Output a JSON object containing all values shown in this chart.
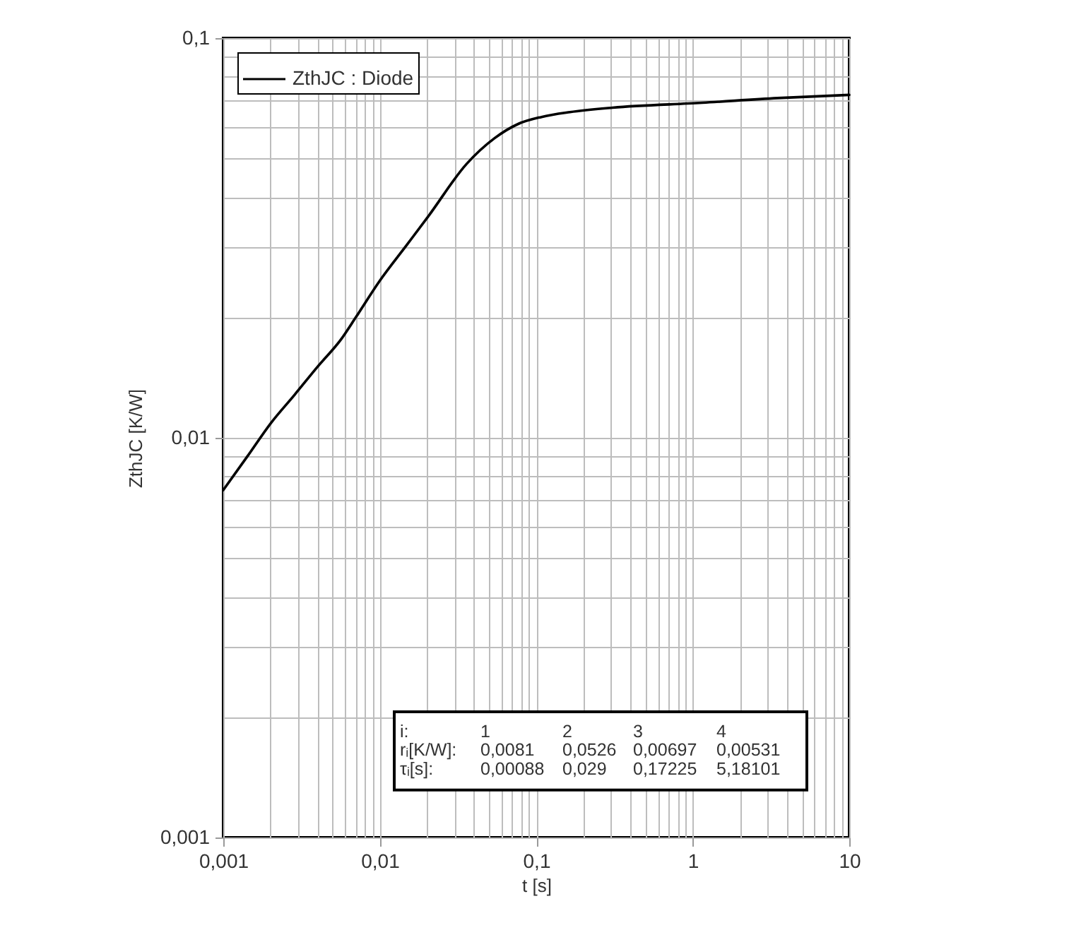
{
  "chart_data": {
    "type": "line",
    "xlabel": "t [s]",
    "ylabel": "ZthJC [K/W]",
    "log": "xy",
    "grid": true,
    "legend": "top left",
    "line_style": "solid",
    "xlim": [
      0.001,
      10
    ],
    "ylim": [
      0.001,
      0.1
    ],
    "xticks": [
      {
        "value": 0.001,
        "label": "0,001"
      },
      {
        "value": 0.002,
        "label": null
      },
      {
        "value": 0.003,
        "label": null
      },
      {
        "value": 0.004,
        "label": null
      },
      {
        "value": 0.005,
        "label": null
      },
      {
        "value": 0.006,
        "label": null
      },
      {
        "value": 0.007,
        "label": null
      },
      {
        "value": 0.008,
        "label": null
      },
      {
        "value": 0.009,
        "label": null
      },
      {
        "value": 0.01,
        "label": "0,01"
      },
      {
        "value": 0.02,
        "label": null
      },
      {
        "value": 0.03,
        "label": null
      },
      {
        "value": 0.04,
        "label": null
      },
      {
        "value": 0.05,
        "label": null
      },
      {
        "value": 0.06,
        "label": null
      },
      {
        "value": 0.07,
        "label": null
      },
      {
        "value": 0.08,
        "label": null
      },
      {
        "value": 0.09,
        "label": null
      },
      {
        "value": 0.1,
        "label": "0,1"
      },
      {
        "value": 0.2,
        "label": null
      },
      {
        "value": 0.3,
        "label": null
      },
      {
        "value": 0.4,
        "label": null
      },
      {
        "value": 0.5,
        "label": null
      },
      {
        "value": 0.6,
        "label": null
      },
      {
        "value": 0.7,
        "label": null
      },
      {
        "value": 0.8,
        "label": null
      },
      {
        "value": 0.9,
        "label": null
      },
      1,
      {
        "value": 2,
        "label": null
      },
      {
        "value": 3,
        "label": null
      },
      {
        "value": 4,
        "label": null
      },
      {
        "value": 5,
        "label": null
      },
      {
        "value": 6,
        "label": null
      },
      {
        "value": 7,
        "label": null
      },
      {
        "value": 8,
        "label": null
      },
      {
        "value": 9,
        "label": null
      },
      10
    ],
    "yticks": [
      {
        "value": 0.001,
        "label": "0,001"
      },
      {
        "value": 0.002,
        "label": null
      },
      {
        "value": 0.003,
        "label": null
      },
      {
        "value": 0.004,
        "label": null
      },
      {
        "value": 0.005,
        "label": null
      },
      {
        "value": 0.006,
        "label": null
      },
      {
        "value": 0.007,
        "label": null
      },
      {
        "value": 0.008,
        "label": null
      },
      {
        "value": 0.009,
        "label": null
      },
      {
        "value": 0.01,
        "label": "0,01"
      },
      {
        "value": 0.02,
        "label": null
      },
      {
        "value": 0.03,
        "label": null
      },
      {
        "value": 0.04,
        "label": null
      },
      {
        "value": 0.05,
        "label": null
      },
      {
        "value": 0.06,
        "label": null
      },
      {
        "value": 0.07,
        "label": null
      },
      {
        "value": 0.08,
        "label": null
      },
      {
        "value": 0.09,
        "label": null
      },
      {
        "value": 0.1,
        "label": "0,1"
      }
    ],
    "x": [
      0.001,
      0.00143,
      0.00202,
      0.00285,
      0.00403,
      0.0057,
      0.00702,
      0.00992,
      0.015,
      0.0205,
      0.0358,
      0.0542,
      0.0767,
      0.108,
      0.164,
      0.307,
      1.15,
      3.48,
      10
    ],
    "series": [
      {
        "name": "ZthJC : Diode",
        "color": "#000000",
        "values": [
          0.0074,
          0.009,
          0.0109,
          0.0128,
          0.0151,
          0.0177,
          0.02,
          0.0246,
          0.0305,
          0.0359,
          0.0484,
          0.0562,
          0.061,
          0.0635,
          0.0653,
          0.067,
          0.0689,
          0.0708,
          0.0721
        ]
      }
    ],
    "annotations": [
      "i:",
      "1",
      "2",
      "3",
      "4",
      "rᵢ[K/W]:",
      "0,0081",
      "0,0526",
      "0,00697",
      "0,00531",
      "τᵢ[s]:",
      "0,00088",
      "0,029",
      "0,17225",
      "5,18101"
    ]
  }
}
